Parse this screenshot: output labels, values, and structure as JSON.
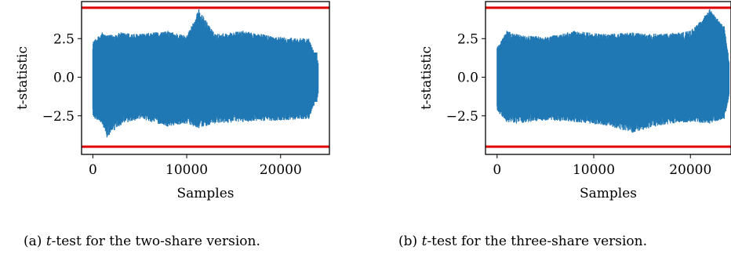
{
  "colors": {
    "trace": "#1f77b4",
    "threshold": "#e00000",
    "axis": "#000000"
  },
  "chart_data": [
    {
      "type": "line",
      "id": "a",
      "caption": {
        "label": "(a)",
        "stat": "t",
        "text": "-test for the two-share version."
      },
      "xlabel": "Samples",
      "ylabel": "t-statistic",
      "xlim": [
        -1200,
        25200
      ],
      "ylim": [
        -5.0,
        4.9
      ],
      "xticks": [
        0,
        10000,
        20000
      ],
      "xtick_labels": [
        "0",
        "10000",
        "20000"
      ],
      "yticks": [
        -2.5,
        0.0,
        2.5
      ],
      "ytick_labels": [
        "−2.5",
        "0.0",
        "2.5"
      ],
      "thresholds": [
        4.5,
        -4.5
      ],
      "series": [
        {
          "n_samples": 24000,
          "band": [
            {
              "x": 0,
              "lo": -2.6,
              "hi": 2.3
            },
            {
              "x": 1000,
              "lo": -3.0,
              "hi": 2.9
            },
            {
              "x": 1500,
              "lo": -3.9,
              "hi": 2.7
            },
            {
              "x": 3000,
              "lo": -3.1,
              "hi": 2.9
            },
            {
              "x": 5000,
              "lo": -2.7,
              "hi": 2.8
            },
            {
              "x": 8000,
              "lo": -3.2,
              "hi": 3.0
            },
            {
              "x": 10000,
              "lo": -3.0,
              "hi": 2.7
            },
            {
              "x": 11300,
              "lo": -3.3,
              "hi": 4.4
            },
            {
              "x": 13000,
              "lo": -3.0,
              "hi": 2.8
            },
            {
              "x": 16000,
              "lo": -2.9,
              "hi": 3.0
            },
            {
              "x": 20000,
              "lo": -2.8,
              "hi": 2.6
            },
            {
              "x": 23000,
              "lo": -2.7,
              "hi": 2.5
            },
            {
              "x": 24000,
              "lo": -1.2,
              "hi": 1.0
            }
          ]
        }
      ]
    },
    {
      "type": "line",
      "id": "b",
      "caption": {
        "label": "(b)",
        "stat": "t",
        "text": "-test for the three-share version."
      },
      "xlabel": "Samples",
      "ylabel": "t-statistic",
      "xlim": [
        -1200,
        24200
      ],
      "ylim": [
        -5.0,
        4.9
      ],
      "xticks": [
        0,
        10000,
        20000
      ],
      "xtick_labels": [
        "0",
        "10000",
        "20000"
      ],
      "yticks": [
        -2.5,
        0.0,
        2.5
      ],
      "ytick_labels": [
        "−2.5",
        "0.0",
        "2.5"
      ],
      "thresholds": [
        4.5,
        -4.5
      ],
      "series": [
        {
          "n_samples": 24000,
          "band": [
            {
              "x": 0,
              "lo": -2.2,
              "hi": 2.0
            },
            {
              "x": 1000,
              "lo": -2.9,
              "hi": 3.0
            },
            {
              "x": 2000,
              "lo": -3.0,
              "hi": 2.8
            },
            {
              "x": 5000,
              "lo": -2.8,
              "hi": 2.6
            },
            {
              "x": 8000,
              "lo": -2.9,
              "hi": 3.0
            },
            {
              "x": 11000,
              "lo": -3.1,
              "hi": 2.8
            },
            {
              "x": 14000,
              "lo": -3.6,
              "hi": 2.9
            },
            {
              "x": 17000,
              "lo": -3.1,
              "hi": 2.8
            },
            {
              "x": 20000,
              "lo": -2.9,
              "hi": 3.0
            },
            {
              "x": 22000,
              "lo": -3.0,
              "hi": 4.4
            },
            {
              "x": 23500,
              "lo": -2.7,
              "hi": 3.3
            },
            {
              "x": 24000,
              "lo": -1.3,
              "hi": 1.1
            }
          ]
        }
      ]
    }
  ]
}
